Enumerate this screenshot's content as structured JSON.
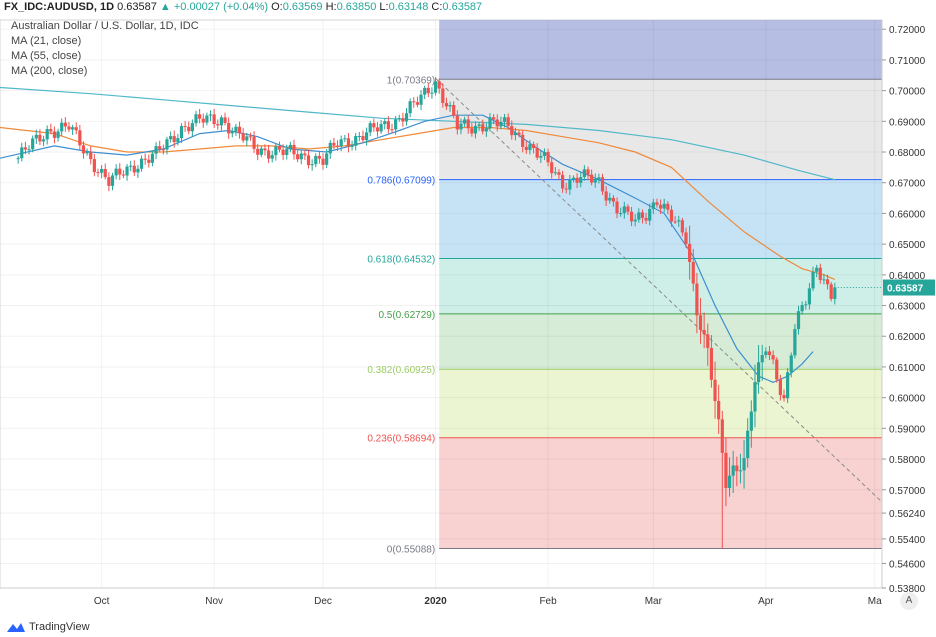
{
  "header": {
    "symbol": "FX_IDC:AUDUSD, 1D",
    "last": "0.63587",
    "change": "▲ +0.00027 (+0.04%)",
    "o_label": "O:",
    "o_value": "0.63569",
    "h_label": "H:",
    "h_value": "0.63850",
    "l_label": "L:",
    "l_value": "0.63148",
    "c_label": "C:",
    "c_value": "0.63587"
  },
  "legend": {
    "title": "Australian Dollar / U.S. Dollar, 1D, IDC",
    "ma21": "MA (21, close)",
    "ma55": "MA (55, close)",
    "ma200": "MA (200, close)"
  },
  "footer": {
    "brand": "TradingView",
    "auto_label": "A"
  },
  "colors": {
    "up": "#26a69a",
    "down": "#ef5350",
    "ma21": "#3d8fd1",
    "ma55": "#f0893a",
    "ma200": "#4fb8c9",
    "price_tag": "#26a69a"
  },
  "chart_data": {
    "type": "candlestick",
    "ylim": [
      0.538,
      0.723
    ],
    "yticks": [
      "0.72000",
      "0.71000",
      "0.70000",
      "0.69000",
      "0.68000",
      "0.67000",
      "0.66000",
      "0.65000",
      "0.64000",
      "0.63000",
      "0.62000",
      "0.61000",
      "0.60000",
      "0.59000",
      "0.58000",
      "0.57000",
      "0.56240",
      "0.55400",
      "0.54600",
      "0.53800"
    ],
    "xticks": [
      {
        "label": "Oct",
        "day": 23
      },
      {
        "label": "Nov",
        "day": 54
      },
      {
        "label": "Dec",
        "day": 84
      },
      {
        "label": "2020",
        "day": 115
      },
      {
        "label": "Feb",
        "day": 146
      },
      {
        "label": "Mar",
        "day": 175
      },
      {
        "label": "Apr",
        "day": 206
      },
      {
        "label": "Ma",
        "day": 236
      }
    ],
    "x_range_days": [
      -5,
      238
    ],
    "last_price": "0.63587",
    "fib_start_day": 116,
    "fib_end_day": 238,
    "fib_levels": [
      {
        "label": "1(0.70369)",
        "value": 0.70369,
        "color": "#787b86"
      },
      {
        "label": "0.786(0.67099)",
        "value": 0.67099,
        "color": "#2962ff"
      },
      {
        "label": "0.618(0.64532)",
        "value": 0.64532,
        "color": "#26a69a"
      },
      {
        "label": "0.5(0.62729)",
        "value": 0.62729,
        "color": "#43a047"
      },
      {
        "label": "0.382(0.60925)",
        "value": 0.60925,
        "color": "#9ccc65"
      },
      {
        "label": "0.236(0.58694)",
        "value": 0.58694,
        "color": "#ef5350"
      },
      {
        "label": "0(0.55088)",
        "value": 0.55088,
        "color": "#787b86"
      }
    ],
    "fib_bands": [
      {
        "from": 0.723,
        "to": 0.70369,
        "color": "#9fa8da"
      },
      {
        "from": 0.70369,
        "to": 0.67099,
        "color": "#e0e0e0"
      },
      {
        "from": 0.67099,
        "to": 0.64532,
        "color": "#b3d9f2"
      },
      {
        "from": 0.64532,
        "to": 0.62729,
        "color": "#bde8e0"
      },
      {
        "from": 0.62729,
        "to": 0.60925,
        "color": "#c8e6c9"
      },
      {
        "from": 0.60925,
        "to": 0.58694,
        "color": "#e6f2c2"
      },
      {
        "from": 0.58694,
        "to": 0.55088,
        "color": "#f5c2c2"
      }
    ],
    "trendline": {
      "from": [
        115,
        0.704
      ],
      "to": [
        238,
        0.566
      ]
    },
    "anchors": [
      [
        0,
        0.678
      ],
      [
        8,
        0.687
      ],
      [
        14,
        0.688
      ],
      [
        18,
        0.681
      ],
      [
        25,
        0.67
      ],
      [
        32,
        0.676
      ],
      [
        38,
        0.679
      ],
      [
        45,
        0.688
      ],
      [
        50,
        0.69
      ],
      [
        56,
        0.691
      ],
      [
        60,
        0.686
      ],
      [
        66,
        0.681
      ],
      [
        72,
        0.68
      ],
      [
        78,
        0.679
      ],
      [
        84,
        0.677
      ],
      [
        88,
        0.683
      ],
      [
        94,
        0.685
      ],
      [
        100,
        0.688
      ],
      [
        105,
        0.691
      ],
      [
        110,
        0.696
      ],
      [
        115,
        0.703
      ],
      [
        118,
        0.696
      ],
      [
        121,
        0.688
      ],
      [
        125,
        0.688
      ],
      [
        130,
        0.69
      ],
      [
        135,
        0.688
      ],
      [
        140,
        0.683
      ],
      [
        145,
        0.677
      ],
      [
        150,
        0.67
      ],
      [
        155,
        0.672
      ],
      [
        160,
        0.67
      ],
      [
        165,
        0.662
      ],
      [
        170,
        0.657
      ],
      [
        173,
        0.66
      ],
      [
        176,
        0.665
      ],
      [
        180,
        0.658
      ],
      [
        184,
        0.652
      ],
      [
        187,
        0.629
      ],
      [
        190,
        0.615
      ],
      [
        193,
        0.59
      ],
      [
        195,
        0.572
      ],
      [
        197,
        0.577
      ],
      [
        200,
        0.58
      ],
      [
        203,
        0.605
      ],
      [
        206,
        0.616
      ],
      [
        208,
        0.611
      ],
      [
        211,
        0.6
      ],
      [
        214,
        0.623
      ],
      [
        217,
        0.631
      ],
      [
        220,
        0.643
      ],
      [
        222,
        0.639
      ],
      [
        224,
        0.634
      ],
      [
        225,
        0.6359
      ]
    ],
    "ma21": [
      [
        -5,
        0.678
      ],
      [
        10,
        0.682
      ],
      [
        20,
        0.68
      ],
      [
        30,
        0.679
      ],
      [
        40,
        0.681
      ],
      [
        50,
        0.686
      ],
      [
        58,
        0.687
      ],
      [
        66,
        0.685
      ],
      [
        75,
        0.681
      ],
      [
        85,
        0.68
      ],
      [
        95,
        0.683
      ],
      [
        105,
        0.687
      ],
      [
        112,
        0.69
      ],
      [
        120,
        0.692
      ],
      [
        128,
        0.692
      ],
      [
        135,
        0.688
      ],
      [
        142,
        0.682
      ],
      [
        150,
        0.676
      ],
      [
        160,
        0.671
      ],
      [
        170,
        0.665
      ],
      [
        178,
        0.66
      ],
      [
        186,
        0.646
      ],
      [
        192,
        0.63
      ],
      [
        198,
        0.616
      ],
      [
        204,
        0.607
      ],
      [
        208,
        0.605
      ],
      [
        212,
        0.607
      ],
      [
        216,
        0.611
      ],
      [
        219,
        0.615
      ]
    ],
    "ma55": [
      [
        -5,
        0.688
      ],
      [
        10,
        0.686
      ],
      [
        20,
        0.682
      ],
      [
        30,
        0.68
      ],
      [
        40,
        0.68
      ],
      [
        50,
        0.681
      ],
      [
        60,
        0.682
      ],
      [
        70,
        0.682
      ],
      [
        80,
        0.681
      ],
      [
        90,
        0.682
      ],
      [
        100,
        0.684
      ],
      [
        110,
        0.686
      ],
      [
        120,
        0.688
      ],
      [
        130,
        0.688
      ],
      [
        140,
        0.687
      ],
      [
        150,
        0.685
      ],
      [
        160,
        0.683
      ],
      [
        170,
        0.68
      ],
      [
        180,
        0.675
      ],
      [
        190,
        0.664
      ],
      [
        200,
        0.654
      ],
      [
        210,
        0.646
      ],
      [
        216,
        0.642
      ],
      [
        222,
        0.64
      ],
      [
        225,
        0.6385
      ]
    ],
    "ma200": [
      [
        -5,
        0.701
      ],
      [
        20,
        0.699
      ],
      [
        40,
        0.697
      ],
      [
        60,
        0.695
      ],
      [
        80,
        0.693
      ],
      [
        100,
        0.691
      ],
      [
        120,
        0.69
      ],
      [
        140,
        0.689
      ],
      [
        160,
        0.687
      ],
      [
        180,
        0.684
      ],
      [
        200,
        0.679
      ],
      [
        215,
        0.674
      ],
      [
        225,
        0.671
      ]
    ]
  }
}
